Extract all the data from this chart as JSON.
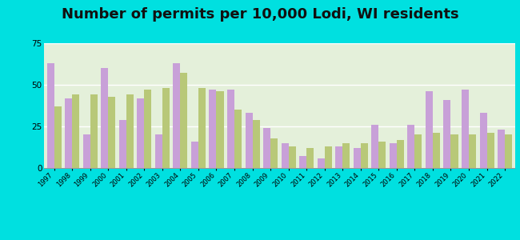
{
  "title": "Number of permits per 10,000 Lodi, WI residents",
  "years": [
    1997,
    1998,
    1999,
    2000,
    2001,
    2002,
    2003,
    2004,
    2005,
    2006,
    2007,
    2008,
    2009,
    2010,
    2011,
    2012,
    2013,
    2014,
    2015,
    2016,
    2017,
    2018,
    2019,
    2020,
    2021,
    2022
  ],
  "lodi_city": [
    63,
    42,
    20,
    60,
    29,
    42,
    20,
    63,
    16,
    47,
    47,
    33,
    24,
    15,
    7,
    6,
    13,
    12,
    26,
    15,
    26,
    46,
    41,
    47,
    33,
    23
  ],
  "wi_average": [
    37,
    44,
    44,
    43,
    44,
    47,
    48,
    57,
    48,
    46,
    35,
    29,
    18,
    13,
    12,
    13,
    15,
    15,
    16,
    17,
    20,
    21,
    20,
    20,
    21,
    20
  ],
  "lodi_color": "#c8a0d8",
  "wi_color": "#b8c878",
  "background_top": "#dff0d0",
  "background_bottom": "#e8f5e8",
  "outer_background": "#00e0e0",
  "ylim": [
    0,
    75
  ],
  "yticks": [
    0,
    25,
    50,
    75
  ],
  "title_fontsize": 13
}
